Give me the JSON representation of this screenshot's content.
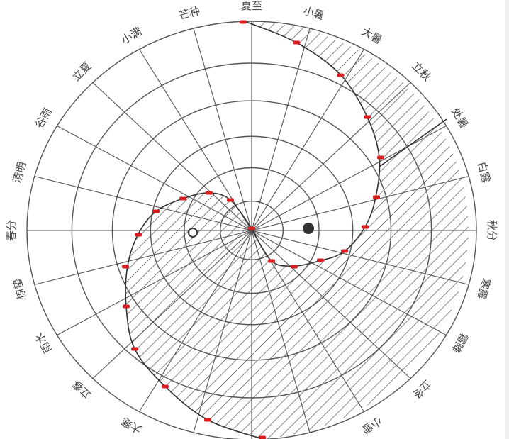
{
  "diagram": {
    "solar_terms": [
      {
        "name": "夏至",
        "angle": 0
      },
      {
        "name": "小暑",
        "angle": 15
      },
      {
        "name": "大暑",
        "angle": 30
      },
      {
        "name": "立秋",
        "angle": 45
      },
      {
        "name": "处暑",
        "angle": 60
      },
      {
        "name": "白露",
        "angle": 75
      },
      {
        "name": "秋分",
        "angle": 90
      },
      {
        "name": "寒露",
        "angle": 105
      },
      {
        "name": "霜降",
        "angle": 120
      },
      {
        "name": "立冬",
        "angle": 135
      },
      {
        "name": "小雪",
        "angle": 150
      },
      {
        "name": "大寒",
        "angle": 210
      },
      {
        "name": "立春",
        "angle": 225
      },
      {
        "name": "雨水",
        "angle": 240
      },
      {
        "name": "惊蛰",
        "angle": 255
      },
      {
        "name": "春分",
        "angle": 270
      },
      {
        "name": "清明",
        "angle": 285
      },
      {
        "name": "谷雨",
        "angle": 300
      },
      {
        "name": "立夏",
        "angle": 315
      },
      {
        "name": "小满",
        "angle": 330
      },
      {
        "name": "芒种",
        "angle": 345
      }
    ],
    "colors": {
      "line": "#555555",
      "marker": "#d81e1e",
      "label": "#444444",
      "dot": "#333333"
    }
  }
}
